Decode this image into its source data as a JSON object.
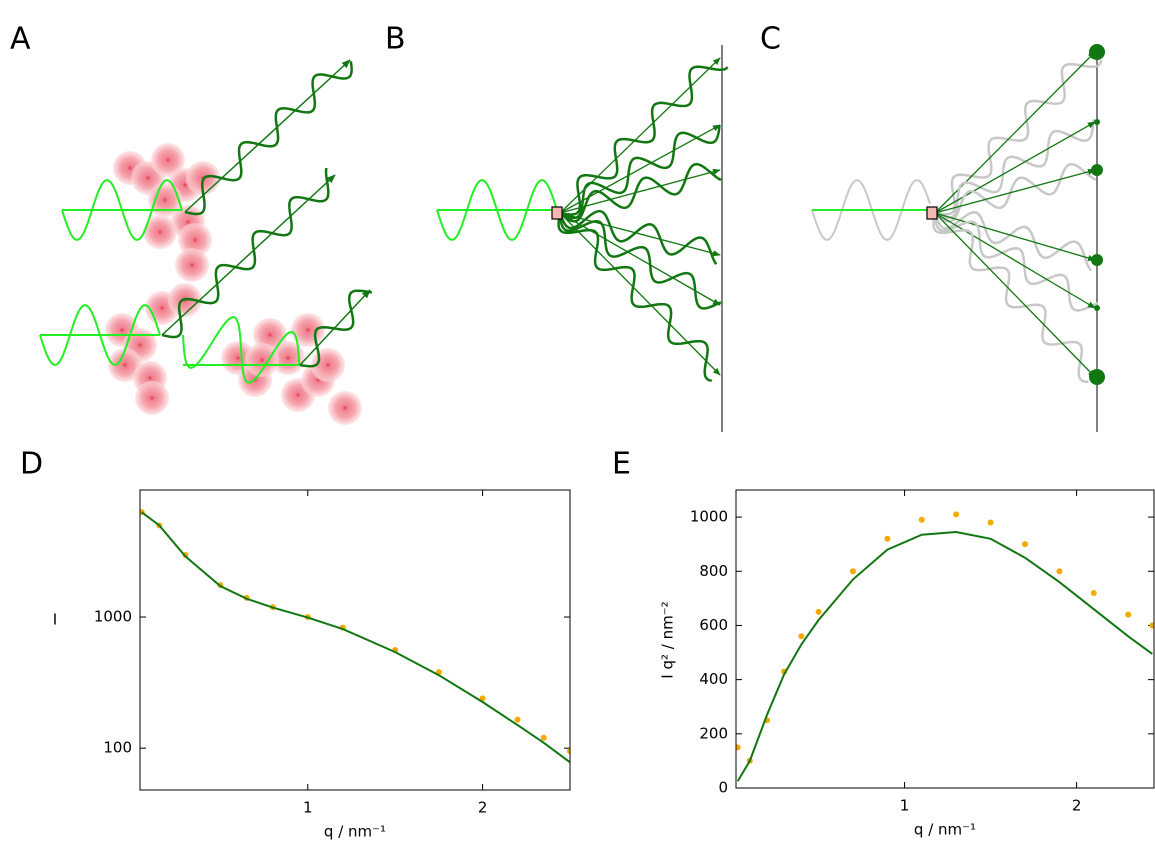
{
  "panel_labels": [
    "A",
    "B",
    "C"
  ],
  "chart_data": [
    {
      "type": "scatter-line",
      "label": "D",
      "ylabel": "I",
      "xlabel": "q / nm⁻¹",
      "yscale": "log",
      "xlim": [
        0.04,
        2.5
      ],
      "ylim": [
        48,
        9300
      ],
      "xticks": [
        1,
        2
      ],
      "yticks": [
        100,
        1000
      ],
      "x": [
        0.05,
        0.15,
        0.3,
        0.5,
        0.65,
        0.8,
        1.0,
        1.2,
        1.5,
        1.75,
        2.0,
        2.2,
        2.35,
        2.5
      ],
      "series": [
        {
          "color": "#f5a800",
          "style": "points",
          "values": [
            6300,
            5000,
            2970,
            1750,
            1400,
            1190,
            1000,
            830,
            560,
            380,
            240,
            165,
            120,
            95
          ]
        },
        {
          "color": "#117711",
          "style": "line",
          "values": [
            6300,
            5000,
            2900,
            1720,
            1380,
            1180,
            990,
            810,
            540,
            360,
            225,
            150,
            110,
            78
          ]
        }
      ]
    },
    {
      "type": "scatter-line",
      "label": "E",
      "ylabel": "I q² / nm⁻²",
      "xlabel": "q / nm⁻¹",
      "yscale": "linear",
      "xlim": [
        0.02,
        2.45
      ],
      "ylim": [
        0,
        1100
      ],
      "xticks": [
        1,
        2
      ],
      "yticks": [
        0,
        200,
        400,
        600,
        800,
        1000
      ],
      "x": [
        0.03,
        0.1,
        0.2,
        0.3,
        0.4,
        0.5,
        0.7,
        0.9,
        1.1,
        1.3,
        1.5,
        1.7,
        1.9,
        2.1,
        2.3,
        2.44
      ],
      "series": [
        {
          "color": "#f5a800",
          "style": "points",
          "values": [
            150,
            100,
            250,
            430,
            560,
            650,
            800,
            920,
            990,
            1010,
            980,
            900,
            800,
            720,
            640,
            600
          ]
        },
        {
          "color": "#117711",
          "style": "line",
          "values": [
            25,
            100,
            270,
            420,
            530,
            620,
            770,
            880,
            935,
            945,
            920,
            850,
            760,
            660,
            560,
            495
          ]
        }
      ]
    }
  ]
}
